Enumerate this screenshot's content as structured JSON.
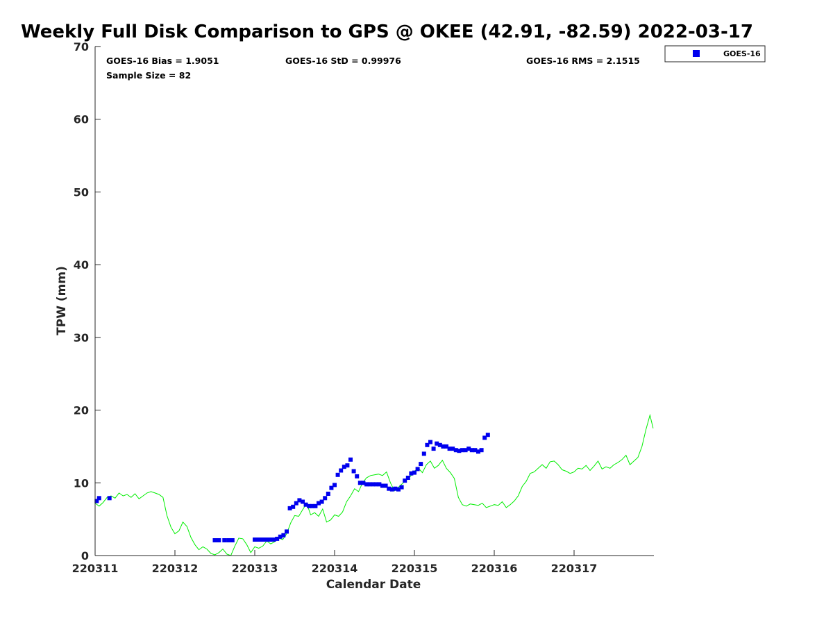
{
  "chart_data": {
    "type": "scatter",
    "title": "Weekly Full Disk Comparison to GPS @ OKEE (42.91, -82.59) 2022-03-17",
    "xlabel": "Calendar Date",
    "ylabel": "TPW (mm)",
    "xlim": [
      0,
      7
    ],
    "ylim": [
      0,
      70
    ],
    "x_tick_values": [
      0,
      1,
      2,
      3,
      4,
      5,
      6
    ],
    "x_tick_labels": [
      "220311",
      "220312",
      "220313",
      "220314",
      "220315",
      "220316",
      "220317"
    ],
    "y_ticks": [
      0,
      10,
      20,
      30,
      40,
      50,
      60,
      70
    ],
    "grid": false,
    "legend_position": "top-right",
    "stats": {
      "bias": "GOES-16 Bias = 1.9051",
      "std": "GOES-16 StD = 0.99976",
      "rms": "GOES-16 RMS = 2.1515",
      "sample": "Sample Size = 82"
    },
    "series": [
      {
        "name": "GOES-16",
        "kind": "scatter",
        "color": "#0000ee",
        "x": [
          0.02,
          0.05,
          0.18,
          1.5,
          1.55,
          1.62,
          1.67,
          1.72,
          2.0,
          2.04,
          2.08,
          2.12,
          2.16,
          2.2,
          2.24,
          2.28,
          2.32,
          2.36,
          2.4,
          2.44,
          2.48,
          2.52,
          2.56,
          2.6,
          2.64,
          2.68,
          2.72,
          2.76,
          2.8,
          2.84,
          2.88,
          2.92,
          2.96,
          3.0,
          3.04,
          3.08,
          3.12,
          3.16,
          3.2,
          3.24,
          3.28,
          3.32,
          3.36,
          3.4,
          3.44,
          3.48,
          3.52,
          3.56,
          3.6,
          3.64,
          3.68,
          3.72,
          3.76,
          3.8,
          3.84,
          3.88,
          3.92,
          3.96,
          4.0,
          4.04,
          4.08,
          4.12,
          4.16,
          4.2,
          4.24,
          4.28,
          4.32,
          4.36,
          4.4,
          4.44,
          4.48,
          4.52,
          4.56,
          4.6,
          4.64,
          4.68,
          4.72,
          4.76,
          4.8,
          4.84,
          4.88,
          4.92
        ],
        "y": [
          7.5,
          7.9,
          7.9,
          2.1,
          2.1,
          2.1,
          2.1,
          2.1,
          2.2,
          2.2,
          2.2,
          2.2,
          2.2,
          2.2,
          2.2,
          2.3,
          2.6,
          2.8,
          3.3,
          6.5,
          6.7,
          7.2,
          7.6,
          7.4,
          7.0,
          6.8,
          6.8,
          6.8,
          7.2,
          7.4,
          7.9,
          8.5,
          9.3,
          9.7,
          11.1,
          11.7,
          12.2,
          12.4,
          13.2,
          11.6,
          10.9,
          10.0,
          10.0,
          9.8,
          9.8,
          9.8,
          9.8,
          9.8,
          9.6,
          9.6,
          9.2,
          9.1,
          9.2,
          9.1,
          9.4,
          10.3,
          10.7,
          11.3,
          11.4,
          11.9,
          12.6,
          14.0,
          15.2,
          15.6,
          14.7,
          15.4,
          15.2,
          15.0,
          15.0,
          14.7,
          14.7,
          14.5,
          14.4,
          14.5,
          14.5,
          14.7,
          14.5,
          14.5,
          14.3,
          14.5,
          16.2,
          16.6
        ]
      },
      {
        "name": "",
        "kind": "line",
        "color": "#00ee00",
        "x": [
          0.0,
          0.05,
          0.1,
          0.15,
          0.2,
          0.25,
          0.3,
          0.35,
          0.4,
          0.45,
          0.5,
          0.55,
          0.6,
          0.65,
          0.7,
          0.75,
          0.8,
          0.85,
          0.9,
          0.95,
          1.0,
          1.05,
          1.1,
          1.15,
          1.2,
          1.25,
          1.3,
          1.35,
          1.4,
          1.45,
          1.5,
          1.55,
          1.6,
          1.65,
          1.7,
          1.75,
          1.8,
          1.85,
          1.9,
          1.95,
          2.0,
          2.05,
          2.1,
          2.15,
          2.2,
          2.25,
          2.3,
          2.35,
          2.4,
          2.45,
          2.5,
          2.55,
          2.6,
          2.65,
          2.7,
          2.75,
          2.8,
          2.85,
          2.9,
          2.95,
          3.0,
          3.05,
          3.1,
          3.15,
          3.2,
          3.25,
          3.3,
          3.35,
          3.4,
          3.45,
          3.5,
          3.55,
          3.6,
          3.65,
          3.7,
          3.75,
          3.8,
          3.85,
          3.9,
          3.95,
          4.0,
          4.05,
          4.1,
          4.15,
          4.2,
          4.25,
          4.3,
          4.35,
          4.4,
          4.45,
          4.5,
          4.55,
          4.6,
          4.65,
          4.7,
          4.75,
          4.8,
          4.85,
          4.9,
          4.95,
          5.0,
          5.05,
          5.1,
          5.15,
          5.2,
          5.25,
          5.3,
          5.35,
          5.4,
          5.45,
          5.5,
          5.55,
          5.6,
          5.65,
          5.7,
          5.75,
          5.8,
          5.85,
          5.9,
          5.95,
          6.0,
          6.05,
          6.1,
          6.15,
          6.2,
          6.25,
          6.3,
          6.35,
          6.4,
          6.45,
          6.5,
          6.55,
          6.6,
          6.65,
          6.7,
          6.75,
          6.8,
          6.85,
          6.9,
          6.95,
          6.99
        ],
        "y": [
          7.2,
          6.8,
          7.3,
          8.0,
          8.2,
          7.9,
          8.6,
          8.2,
          8.4,
          8.0,
          8.5,
          7.8,
          8.2,
          8.6,
          8.8,
          8.6,
          8.4,
          8.0,
          5.5,
          3.9,
          3.0,
          3.4,
          4.6,
          4.0,
          2.5,
          1.5,
          0.8,
          1.2,
          0.9,
          0.3,
          0.1,
          0.4,
          0.9,
          0.2,
          0.0,
          1.3,
          2.4,
          2.3,
          1.5,
          0.4,
          1.2,
          1.0,
          1.3,
          2.0,
          1.6,
          1.9,
          2.4,
          2.2,
          3.0,
          4.5,
          5.5,
          5.4,
          6.3,
          7.2,
          5.6,
          5.9,
          5.4,
          6.4,
          4.6,
          4.9,
          5.6,
          5.4,
          6.0,
          7.4,
          8.2,
          9.2,
          8.8,
          10.0,
          10.7,
          11.0,
          11.1,
          11.2,
          11.0,
          11.5,
          10.0,
          8.9,
          9.4,
          9.9,
          10.4,
          10.9,
          11.6,
          12.0,
          11.4,
          12.5,
          13.0,
          12.0,
          12.4,
          13.1,
          12.0,
          11.4,
          10.6,
          8.0,
          7.0,
          6.8,
          7.1,
          7.0,
          6.9,
          7.2,
          6.6,
          6.8,
          7.0,
          6.9,
          7.4,
          6.6,
          7.0,
          7.5,
          8.2,
          9.5,
          10.2,
          11.3,
          11.5,
          12.0,
          12.5,
          12.0,
          12.9,
          13.0,
          12.5,
          11.8,
          11.6,
          11.3,
          11.5,
          12.0,
          11.9,
          12.4,
          11.7,
          12.3,
          13.0,
          11.9,
          12.2,
          12.0,
          12.5,
          12.8,
          13.2,
          13.8,
          12.5,
          13.0,
          13.5,
          15.0,
          17.3,
          19.3,
          17.5
        ]
      }
    ]
  }
}
